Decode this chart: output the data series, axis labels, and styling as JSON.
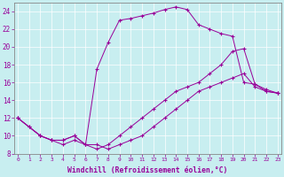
{
  "background_color": "#c8eef0",
  "line_color": "#990099",
  "xlabel": "Windchill (Refroidissement éolien,°C)",
  "xlim": [
    -0.3,
    23.3
  ],
  "ylim": [
    8,
    25
  ],
  "xticks": [
    0,
    1,
    2,
    3,
    4,
    5,
    6,
    7,
    8,
    9,
    10,
    11,
    12,
    13,
    14,
    15,
    16,
    17,
    18,
    19,
    20,
    21,
    22,
    23
  ],
  "yticks": [
    8,
    10,
    12,
    14,
    16,
    18,
    20,
    22,
    24
  ],
  "lines": [
    {
      "x": [
        0,
        1,
        2,
        3,
        4,
        5,
        6,
        7,
        8,
        9,
        10,
        11,
        12,
        13,
        14,
        15,
        16,
        17,
        18,
        19,
        20,
        21,
        22,
        23
      ],
      "y": [
        12,
        11,
        10,
        9.5,
        9.5,
        10,
        9,
        17.5,
        20.5,
        23,
        23.2,
        23.5,
        23.8,
        24.2,
        24.5,
        24.2,
        22.5,
        22,
        21.5,
        21.2,
        16,
        15.8,
        15.2,
        14.8
      ]
    },
    {
      "x": [
        0,
        1,
        2,
        3,
        4,
        5,
        6,
        7,
        8,
        9,
        10,
        11,
        12,
        13,
        14,
        15,
        16,
        17,
        18,
        19,
        20,
        21,
        22,
        23
      ],
      "y": [
        12,
        11,
        10,
        9.5,
        9,
        9.5,
        9,
        8.5,
        9,
        10,
        11,
        12,
        13,
        14,
        15,
        15.5,
        16,
        17,
        18,
        19.5,
        19.8,
        15.8,
        15,
        14.8
      ]
    },
    {
      "x": [
        0,
        2,
        3,
        4,
        5,
        6,
        7,
        8,
        9,
        10,
        11,
        12,
        13,
        14,
        15,
        16,
        17,
        18,
        19,
        20,
        21,
        22,
        23
      ],
      "y": [
        12,
        10,
        9.5,
        9.5,
        10,
        9,
        9,
        8.5,
        9,
        9.5,
        10,
        11,
        12,
        13,
        14,
        15,
        15.5,
        16,
        16.5,
        17,
        15.5,
        15,
        14.8
      ]
    }
  ]
}
